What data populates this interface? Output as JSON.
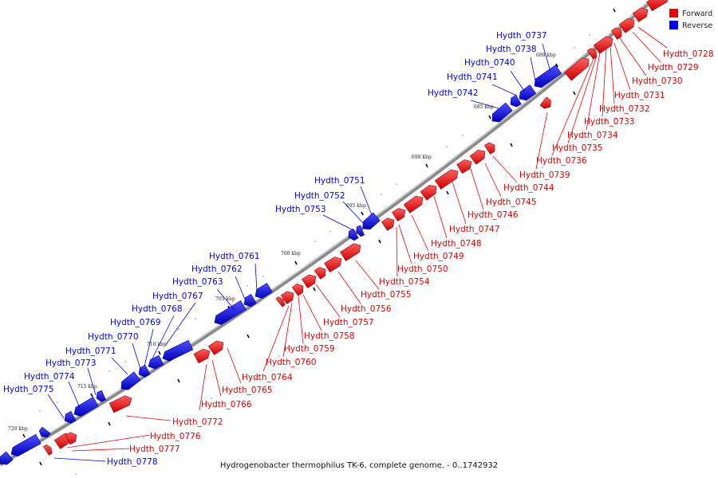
{
  "caption": "Hydrogenobacter thermophilus TK-6, complete genome. - 0..1742932",
  "legend": [
    {
      "label": "Forward",
      "color": "#ee0000"
    },
    {
      "label": "Reverse",
      "color": "#0000ee"
    }
  ],
  "colors": {
    "forward": "#ee0000",
    "reverse": "#0000ee",
    "axis": "#808080"
  },
  "ticks": [
    "680 kbp",
    "685 kbp",
    "690 kbp",
    "695 kbp",
    "700 kbp",
    "705 kbp",
    "710 kbp",
    "715 kbp",
    "720 kbp"
  ],
  "genes_reverse": [
    "Hydth_0737",
    "Hydth_0738",
    "Hydth_0740",
    "Hydth_0741",
    "Hydth_0742",
    "Hydth_0751",
    "Hydth_0752",
    "Hydth_0753",
    "Hydth_0761",
    "Hydth_0762",
    "Hydth_0763",
    "Hydth_0767",
    "Hydth_0768",
    "Hydth_0769",
    "Hydth_0770",
    "Hydth_0771",
    "Hydth_0773",
    "Hydth_0774",
    "Hydth_0775",
    "Hydth_0778"
  ],
  "genes_forward": [
    "Hydth_0728",
    "Hydth_0729",
    "Hydth_0730",
    "Hydth_0731",
    "Hydth_0732",
    "Hydth_0733",
    "Hydth_0734",
    "Hydth_0735",
    "Hydth_0736",
    "Hydth_0739",
    "Hydth_0744",
    "Hydth_0745",
    "Hydth_0746",
    "Hydth_0747",
    "Hydth_0748",
    "Hydth_0749",
    "Hydth_0750",
    "Hydth_0754",
    "Hydth_0755",
    "Hydth_0756",
    "Hydth_0757",
    "Hydth_0758",
    "Hydth_0759",
    "Hydth_0760",
    "Hydth_0764",
    "Hydth_0765",
    "Hydth_0766",
    "Hydth_0772",
    "Hydth_0776",
    "Hydth_0777"
  ]
}
